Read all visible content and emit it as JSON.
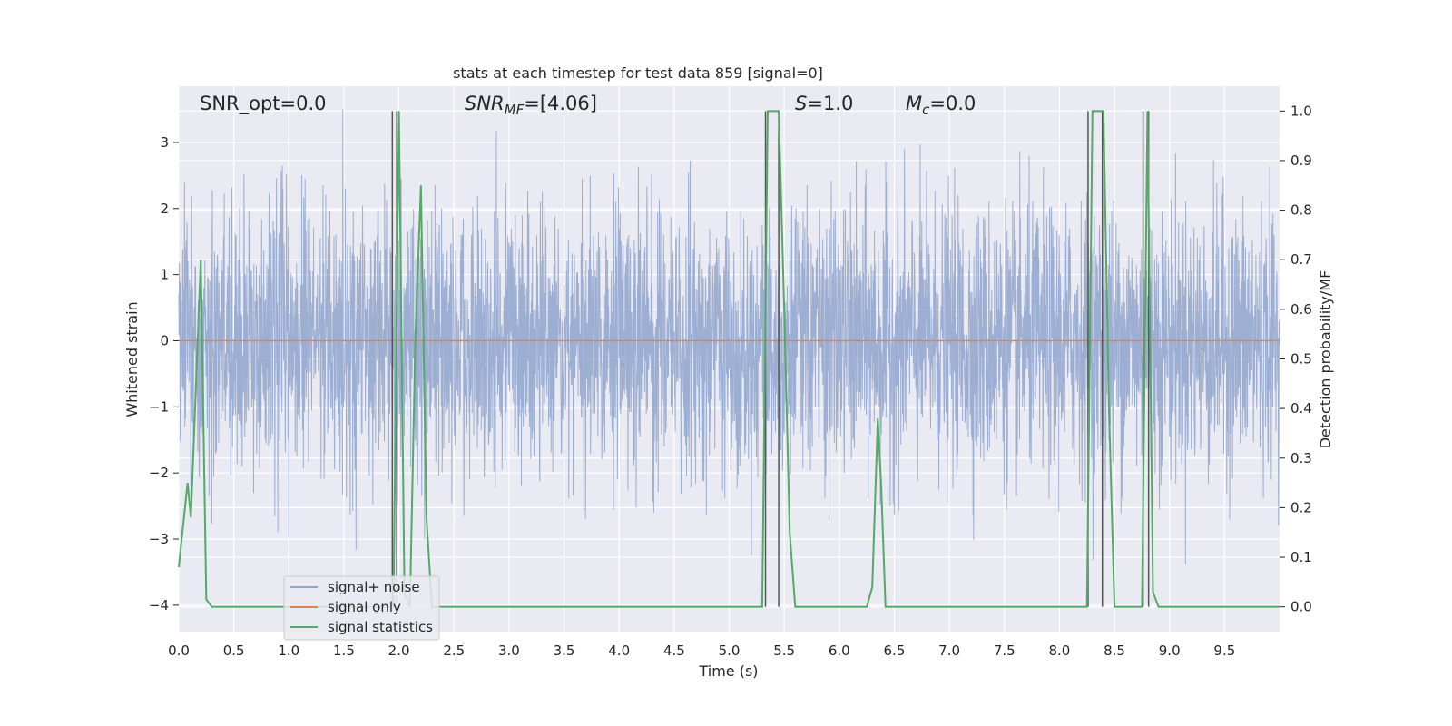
{
  "chart_data": {
    "type": "line",
    "title": "stats at each timestep for test data 859 [signal=0]",
    "xlabel": "Time (s)",
    "ylabel": "Whitened strain",
    "y2label": "Detection probability/MF",
    "xlim": [
      0,
      10
    ],
    "ylim": [
      -4.4,
      3.85
    ],
    "y2lim": [
      -0.05,
      1.05
    ],
    "grid": true,
    "legend_position": "lower-left",
    "x_ticks": [
      "0.0",
      "0.5",
      "1.0",
      "1.5",
      "2.0",
      "2.5",
      "3.0",
      "3.5",
      "4.0",
      "4.5",
      "5.0",
      "5.5",
      "6.0",
      "6.5",
      "7.0",
      "7.5",
      "8.0",
      "8.5",
      "9.0",
      "9.5"
    ],
    "y_ticks": [
      "3",
      "2",
      "1",
      "0",
      "−1",
      "−2",
      "−3",
      "−4"
    ],
    "y2_ticks": [
      "1.0",
      "0.9",
      "0.8",
      "0.7",
      "0.6",
      "0.5",
      "0.4",
      "0.3",
      "0.2",
      "0.1",
      "0.0"
    ],
    "annotations": {
      "snr_opt": "SNR_opt=0.0",
      "snr_mf_base": "SNR",
      "snr_mf_sub": "MF",
      "snr_mf_value": "=[4.06]",
      "s_base": "S",
      "s_value": "=1.0",
      "mc_base": "M",
      "mc_sub": "c",
      "mc_value": "=0.0"
    },
    "series": [
      {
        "name": "signal+ noise",
        "color": "#8fa3ce",
        "description_of_values": "whitened noise, approx Gaussian, mostly within [-2.5, 2.5] with peaks to ~3.5"
      },
      {
        "name": "signal only",
        "color": "#dd8452",
        "x": [
          0,
          10
        ],
        "y": [
          0,
          0
        ]
      },
      {
        "name": "signal statistics",
        "color": "#55a868",
        "axis": "right",
        "x": [
          0.0,
          0.08,
          0.11,
          0.2,
          0.25,
          0.3,
          1.9,
          1.95,
          2.0,
          2.05,
          2.1,
          2.15,
          2.2,
          2.25,
          2.3,
          5.3,
          5.35,
          5.45,
          5.5,
          5.55,
          5.6,
          6.25,
          6.3,
          6.35,
          6.38,
          6.42,
          6.45,
          8.25,
          8.3,
          8.35,
          8.4,
          8.45,
          8.5,
          8.75,
          8.8,
          8.85,
          8.9,
          9.0,
          10.0
        ],
        "y": [
          0.08,
          0.25,
          0.18,
          0.7,
          0.015,
          0.0,
          0.0,
          0.0,
          1.0,
          0.03,
          0.0,
          0.55,
          0.85,
          0.18,
          0.0,
          0.0,
          1.0,
          1.0,
          0.6,
          0.15,
          0.0,
          0.0,
          0.04,
          0.38,
          0.25,
          0.0,
          0.0,
          0.0,
          1.0,
          1.0,
          1.0,
          0.4,
          0.0,
          0.0,
          1.0,
          0.03,
          0.0,
          0.0,
          0.0
        ]
      }
    ],
    "vlines": {
      "color": "#555555",
      "x": [
        1.94,
        1.98,
        5.33,
        5.45,
        8.26,
        8.39,
        8.76,
        8.81
      ]
    },
    "legend": [
      "signal+ noise",
      "signal only",
      "signal statistics"
    ]
  }
}
